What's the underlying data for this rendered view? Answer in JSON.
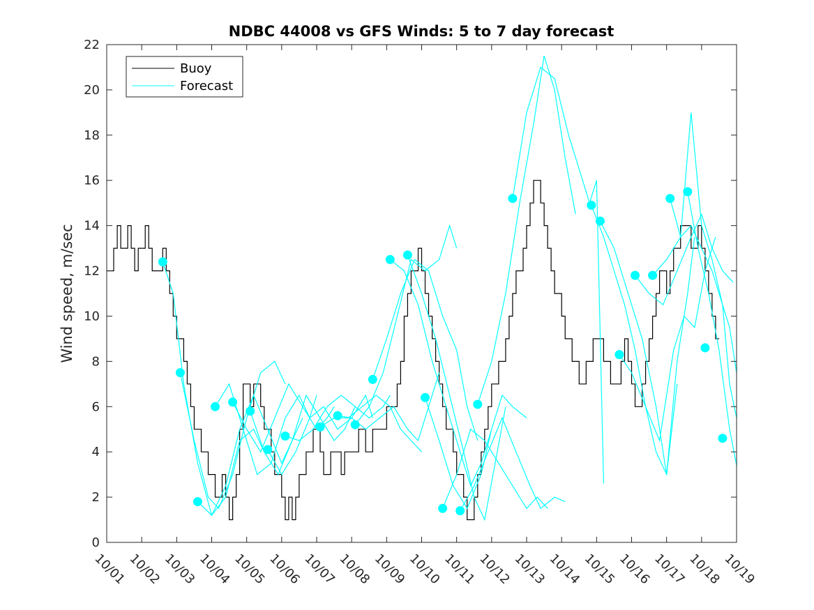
{
  "chart_data": {
    "type": "line",
    "title": "NDBC 44008 vs GFS Winds: 5 to 7 day forecast",
    "xlabel": "",
    "ylabel": "Wind speed, m/sec",
    "xlim": [
      0,
      18
    ],
    "ylim": [
      0,
      22
    ],
    "x_tick_labels": [
      "10/01",
      "10/02",
      "10/03",
      "10/04",
      "10/05",
      "10/06",
      "10/07",
      "10/08",
      "10/09",
      "10/10",
      "10/11",
      "10/12",
      "10/13",
      "10/14",
      "10/15",
      "10/16",
      "10/17",
      "10/18",
      "10/19"
    ],
    "y_ticks": [
      0,
      2,
      4,
      6,
      8,
      10,
      12,
      14,
      16,
      18,
      20,
      22
    ],
    "legend": [
      "Buoy",
      "Forecast"
    ],
    "legend_position": "top-left",
    "colors": {
      "buoy": "#000000",
      "forecast": "#00ffff"
    },
    "buoy": {
      "name": "Buoy",
      "x": [
        0,
        0.1,
        0.2,
        0.3,
        0.4,
        0.5,
        0.6,
        0.7,
        0.8,
        0.9,
        1.0,
        1.1,
        1.2,
        1.3,
        1.4,
        1.5,
        1.6,
        1.7,
        1.8,
        1.9,
        2.0,
        2.1,
        2.2,
        2.3,
        2.4,
        2.5,
        2.6,
        2.7,
        2.8,
        2.9,
        3.0,
        3.1,
        3.2,
        3.3,
        3.4,
        3.5,
        3.6,
        3.7,
        3.8,
        3.9,
        4.0,
        4.1,
        4.2,
        4.3,
        4.4,
        4.5,
        4.6,
        4.7,
        4.8,
        4.9,
        5.0,
        5.1,
        5.2,
        5.3,
        5.4,
        5.5,
        5.6,
        5.7,
        5.8,
        5.9,
        6.0,
        6.1,
        6.2,
        6.3,
        6.4,
        6.5,
        6.6,
        6.7,
        6.8,
        6.9,
        7.0,
        7.1,
        7.2,
        7.3,
        7.4,
        7.5,
        7.6,
        7.7,
        7.8,
        7.9,
        8.0,
        8.1,
        8.2,
        8.3,
        8.4,
        8.5,
        8.6,
        8.7,
        8.8,
        8.9,
        9.0,
        9.1,
        9.2,
        9.3,
        9.4,
        9.5,
        9.6,
        9.7,
        9.8,
        9.9,
        10.0,
        10.1,
        10.2,
        10.3,
        10.4,
        10.5,
        10.6,
        10.7,
        10.8,
        10.9,
        11.0,
        11.1,
        11.2,
        11.3,
        11.4,
        11.5,
        11.6,
        11.7,
        11.8,
        11.9,
        12.0,
        12.1,
        12.2,
        12.3,
        12.4,
        12.5,
        12.6,
        12.7,
        12.8,
        12.9,
        13.0,
        13.1,
        13.2,
        13.3,
        13.4,
        13.5,
        13.6,
        13.7,
        13.8,
        13.9,
        14.0,
        14.1,
        14.2,
        14.3,
        14.4,
        14.5,
        14.6,
        14.7,
        14.8,
        14.9,
        15.0,
        15.1,
        15.2,
        15.3,
        15.4,
        15.5,
        15.6,
        15.7,
        15.8,
        15.9,
        16.0,
        16.1,
        16.2,
        16.3,
        16.4,
        16.5,
        16.6,
        16.7,
        16.8,
        16.9,
        17.0,
        17.1,
        17.2,
        17.3,
        17.4,
        17.5
      ],
      "values": [
        12,
        12,
        13,
        14,
        13,
        13,
        14,
        13,
        12,
        13,
        13,
        14,
        13,
        12,
        12,
        12,
        13,
        12,
        11,
        10,
        9,
        9,
        8,
        7,
        6,
        5,
        5,
        4,
        4,
        3,
        3,
        2,
        2,
        3,
        2,
        1,
        2,
        3,
        5,
        7,
        7,
        6,
        7,
        7,
        6,
        5,
        5,
        4,
        3,
        3,
        2,
        1,
        2,
        1,
        2,
        3,
        3,
        4,
        4,
        5,
        5,
        4,
        3,
        3,
        4,
        4,
        4,
        3,
        4,
        4,
        4,
        4,
        5,
        5,
        4,
        4,
        5,
        5,
        5,
        5,
        6,
        6,
        6,
        7,
        8,
        10,
        11,
        12,
        12,
        13,
        12,
        11,
        10,
        9,
        8,
        7,
        6,
        5,
        5,
        4,
        3,
        3,
        2,
        1,
        1,
        2,
        3,
        4,
        5,
        6,
        7,
        7,
        8,
        8,
        9,
        10,
        11,
        12,
        12,
        13,
        14,
        15,
        16,
        16,
        15,
        14,
        13,
        12,
        11,
        11,
        10,
        9,
        9,
        8,
        8,
        7,
        7,
        8,
        8,
        9,
        9,
        9,
        8,
        8,
        7,
        7,
        7,
        8,
        9,
        8,
        7,
        6,
        6,
        7,
        8,
        9,
        10,
        11,
        12,
        12,
        11,
        12,
        13,
        13,
        14,
        14,
        14,
        13,
        13,
        14,
        13,
        12,
        11,
        10,
        9,
        9
      ]
    },
    "forecasts": [
      {
        "name": "Forecast",
        "x": [
          1.6,
          1.9,
          2.2,
          2.6,
          3.0,
          3.4,
          3.8,
          4.2,
          4.5
        ],
        "values": [
          12.4,
          11.0,
          7.0,
          3.5,
          1.2,
          2.0,
          4.5,
          5.0,
          4.0
        ]
      },
      {
        "name": "Forecast",
        "x": [
          2.1,
          2.5,
          2.9,
          3.2,
          3.6,
          4.0,
          4.4,
          4.8,
          5.1
        ],
        "values": [
          7.5,
          4.5,
          2.0,
          1.5,
          3.0,
          5.5,
          7.5,
          8.0,
          7.0
        ]
      },
      {
        "name": "Forecast",
        "x": [
          2.6,
          3.0,
          3.4,
          3.8,
          4.2,
          4.6,
          5.0,
          5.3,
          5.6
        ],
        "values": [
          1.8,
          1.2,
          2.5,
          5.0,
          6.5,
          5.0,
          3.5,
          4.5,
          5.5
        ]
      },
      {
        "name": "Forecast",
        "x": [
          3.1,
          3.5,
          3.9,
          4.3,
          4.7,
          5.1,
          5.5,
          5.8,
          6.0
        ],
        "values": [
          6.0,
          7.0,
          5.0,
          3.0,
          3.5,
          5.5,
          6.5,
          5.5,
          6.5
        ]
      },
      {
        "name": "Forecast",
        "x": [
          3.6,
          4.0,
          4.4,
          4.8,
          5.2,
          5.6,
          6.0,
          6.3,
          6.5
        ],
        "values": [
          6.2,
          5.0,
          4.0,
          5.5,
          7.0,
          6.0,
          5.0,
          5.5,
          6.0
        ]
      },
      {
        "name": "Forecast",
        "x": [
          4.1,
          4.5,
          4.9,
          5.3,
          5.7,
          6.1,
          6.5,
          6.8,
          7.1
        ],
        "values": [
          5.8,
          4.0,
          3.0,
          4.5,
          6.5,
          5.5,
          4.5,
          5.0,
          6.0
        ]
      },
      {
        "name": "Forecast",
        "x": [
          4.6,
          5.0,
          5.4,
          5.8,
          6.2,
          6.6,
          7.0,
          7.4,
          7.6
        ],
        "values": [
          4.1,
          3.0,
          4.0,
          5.5,
          6.0,
          5.0,
          5.5,
          6.5,
          5.5
        ]
      },
      {
        "name": "Forecast",
        "x": [
          5.1,
          5.5,
          5.9,
          6.3,
          6.7,
          7.1,
          7.5,
          7.9,
          8.1
        ],
        "values": [
          4.7,
          4.5,
          5.0,
          6.0,
          6.5,
          6.0,
          5.5,
          6.0,
          6.5
        ]
      },
      {
        "name": "Forecast",
        "x": [
          6.1,
          6.5,
          6.9,
          7.3,
          7.7,
          8.1,
          8.4,
          8.7,
          9.0
        ],
        "values": [
          5.1,
          5.5,
          5.5,
          6.0,
          6.5,
          6.0,
          5.0,
          4.5,
          4.0
        ]
      },
      {
        "name": "Forecast",
        "x": [
          6.6,
          7.0,
          7.4,
          7.8,
          8.2,
          8.6,
          8.9,
          9.2,
          9.5
        ],
        "values": [
          5.6,
          5.5,
          5.0,
          5.5,
          6.0,
          5.0,
          4.5,
          6.0,
          7.5
        ]
      },
      {
        "name": "Forecast",
        "x": [
          7.1,
          7.5,
          7.9,
          8.3,
          8.7,
          9.1,
          9.5,
          9.8,
          10.0
        ],
        "values": [
          5.2,
          6.0,
          7.5,
          10.0,
          12.5,
          12.0,
          12.5,
          14.0,
          13.0
        ]
      },
      {
        "name": "Forecast",
        "x": [
          7.6,
          8.0,
          8.4,
          8.8,
          9.2,
          9.6,
          10.0,
          10.3,
          10.6
        ],
        "values": [
          7.2,
          9.0,
          11.0,
          12.5,
          12.0,
          10.0,
          8.5,
          6.0,
          4.5
        ]
      },
      {
        "name": "Forecast",
        "x": [
          8.1,
          8.5,
          8.9,
          9.3,
          9.7,
          10.1,
          10.4,
          10.7,
          11.0
        ],
        "values": [
          12.5,
          12.0,
          10.5,
          8.0,
          6.0,
          4.0,
          2.5,
          3.5,
          5.0
        ]
      },
      {
        "name": "Forecast",
        "x": [
          8.6,
          9.0,
          9.4,
          9.8,
          10.2,
          10.5,
          10.8,
          11.1,
          11.4
        ],
        "values": [
          12.7,
          11.0,
          9.0,
          6.5,
          4.0,
          2.0,
          1.0,
          3.5,
          6.0
        ]
      },
      {
        "name": "Forecast",
        "x": [
          9.1,
          9.5,
          9.9,
          10.3,
          10.7,
          11.0,
          11.3,
          11.6,
          12.0
        ],
        "values": [
          6.4,
          4.5,
          2.5,
          1.5,
          3.0,
          5.0,
          6.5,
          6.0,
          5.5
        ]
      },
      {
        "name": "Forecast",
        "x": [
          9.6,
          10.0,
          10.4,
          10.8,
          11.2,
          11.6,
          12.0,
          12.3,
          12.6
        ],
        "values": [
          1.5,
          3.0,
          5.0,
          4.5,
          3.5,
          2.5,
          1.5,
          2.0,
          1.5
        ]
      },
      {
        "name": "Forecast",
        "x": [
          10.1,
          10.5,
          10.9,
          11.3,
          11.7,
          12.1,
          12.4,
          12.8,
          13.1
        ],
        "values": [
          1.4,
          2.5,
          4.0,
          5.5,
          4.0,
          2.5,
          1.5,
          2.0,
          1.8
        ]
      },
      {
        "name": "Forecast",
        "x": [
          10.6,
          11.0,
          11.4,
          11.8,
          12.2,
          12.5,
          12.8,
          13.1,
          13.4
        ],
        "values": [
          6.1,
          8.0,
          11.0,
          15.0,
          18.5,
          21.5,
          20.0,
          17.0,
          14.5
        ]
      },
      {
        "name": "Forecast",
        "x": [
          11.6,
          12.0,
          12.4,
          12.8,
          13.2,
          13.5,
          13.8,
          14.0,
          14.2
        ],
        "values": [
          15.2,
          19.0,
          21.0,
          20.5,
          18.0,
          16.5,
          15.0,
          16.0,
          2.6
        ]
      },
      {
        "name": "Forecast",
        "x": [
          13.85,
          14.2,
          14.5,
          14.8,
          15.1,
          15.4,
          15.7,
          16.0,
          16.3
        ],
        "values": [
          14.9,
          13.5,
          12.0,
          10.5,
          8.5,
          6.0,
          4.0,
          3.0,
          7.0
        ]
      },
      {
        "name": "Forecast",
        "x": [
          14.1,
          14.5,
          14.9,
          15.3,
          15.7,
          16.0,
          16.3,
          16.6,
          16.8
        ],
        "values": [
          14.2,
          13.0,
          11.0,
          9.0,
          6.0,
          3.0,
          8.0,
          11.0,
          13.5
        ]
      },
      {
        "name": "Forecast",
        "x": [
          14.65,
          15.0,
          15.4,
          15.8,
          16.2,
          16.5,
          16.8,
          17.1,
          17.4
        ],
        "values": [
          8.3,
          7.5,
          6.0,
          4.5,
          8.5,
          10.0,
          9.5,
          12.0,
          13.5
        ]
      },
      {
        "name": "Forecast",
        "x": [
          15.1,
          15.5,
          15.9,
          16.3,
          16.7,
          17.0,
          17.3,
          17.6,
          17.9
        ],
        "values": [
          11.8,
          11.0,
          10.5,
          12.0,
          13.5,
          14.5,
          13.0,
          12.0,
          11.5
        ]
      },
      {
        "name": "Forecast",
        "x": [
          15.6,
          16.0,
          16.4,
          16.7,
          17.0,
          17.3,
          17.6,
          17.8,
          18.0
        ],
        "values": [
          11.8,
          12.5,
          13.5,
          19.0,
          14.0,
          12.5,
          10.5,
          9.5,
          7.5
        ]
      },
      {
        "name": "Forecast",
        "x": [
          16.1,
          16.4,
          16.7,
          17.0,
          17.3,
          17.6,
          17.8,
          18.0
        ],
        "values": [
          15.2,
          13.5,
          14.0,
          13.0,
          12.0,
          10.5,
          7.0,
          5.5
        ]
      },
      {
        "name": "Forecast",
        "x": [
          16.6,
          16.9,
          17.2,
          17.5,
          17.8,
          18.0
        ],
        "values": [
          15.5,
          13.0,
          11.0,
          8.5,
          5.0,
          3.4
        ]
      }
    ],
    "forecast_markers": [
      {
        "x": 1.6,
        "y": 12.4
      },
      {
        "x": 2.1,
        "y": 7.5
      },
      {
        "x": 2.6,
        "y": 1.8
      },
      {
        "x": 3.1,
        "y": 6.0
      },
      {
        "x": 3.6,
        "y": 6.2
      },
      {
        "x": 4.1,
        "y": 5.8
      },
      {
        "x": 4.6,
        "y": 4.1
      },
      {
        "x": 5.1,
        "y": 4.7
      },
      {
        "x": 6.1,
        "y": 5.1
      },
      {
        "x": 6.6,
        "y": 5.6
      },
      {
        "x": 7.1,
        "y": 5.2
      },
      {
        "x": 7.6,
        "y": 7.2
      },
      {
        "x": 8.1,
        "y": 12.5
      },
      {
        "x": 8.6,
        "y": 12.7
      },
      {
        "x": 9.1,
        "y": 6.4
      },
      {
        "x": 9.6,
        "y": 1.5
      },
      {
        "x": 10.1,
        "y": 1.4
      },
      {
        "x": 10.6,
        "y": 6.1
      },
      {
        "x": 11.6,
        "y": 15.2
      },
      {
        "x": 13.85,
        "y": 14.9
      },
      {
        "x": 14.1,
        "y": 14.2
      },
      {
        "x": 14.65,
        "y": 8.3
      },
      {
        "x": 15.1,
        "y": 11.8
      },
      {
        "x": 15.6,
        "y": 11.8
      },
      {
        "x": 16.1,
        "y": 15.2
      },
      {
        "x": 16.6,
        "y": 15.5
      },
      {
        "x": 17.1,
        "y": 8.6
      },
      {
        "x": 17.6,
        "y": 4.6
      }
    ]
  }
}
